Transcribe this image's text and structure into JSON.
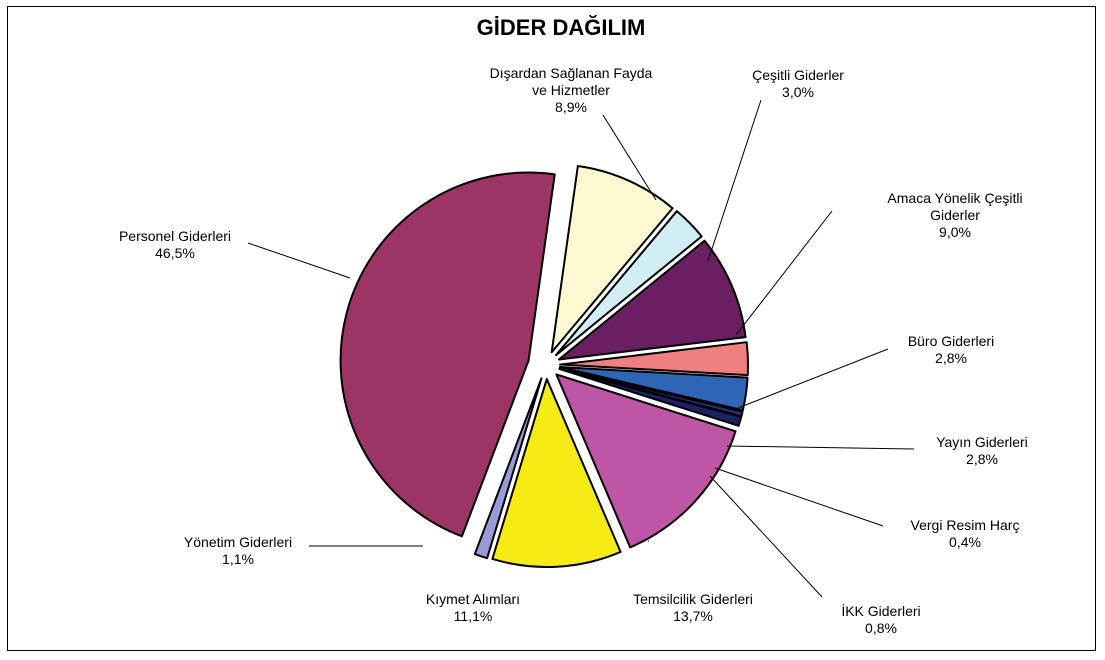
{
  "chart_data": {
    "type": "pie",
    "title": "GİDER DAĞILIM",
    "slices": [
      {
        "label": [
          "Dışardan Sağlanan Fayda",
          "ve Hizmetler"
        ],
        "value_text": "8,9%",
        "value": 8.9,
        "color": "#FBF8D2"
      },
      {
        "label": [
          "Çeşitli Giderler"
        ],
        "value_text": "3,0%",
        "value": 3.0,
        "color": "#D2EEF5"
      },
      {
        "label": [
          "Amaca Yönelik Çeşitli",
          "Giderler"
        ],
        "value_text": "9,0%",
        "value": 9.0,
        "color": "#6A1F62"
      },
      {
        "label": [
          "Büro Giderleri"
        ],
        "value_text": "2,8%",
        "value": 2.8,
        "color": "#F08080"
      },
      {
        "label": [
          "Yayın Giderleri"
        ],
        "value_text": "2,8%",
        "value": 2.8,
        "color": "#2E66B5"
      },
      {
        "label": [
          "Vergi Resim Harç"
        ],
        "value_text": "0,4%",
        "value": 0.4,
        "color": "#2C2C7A"
      },
      {
        "label": [
          "İKK Giderleri"
        ],
        "value_text": "0,8%",
        "value": 0.8,
        "color": "#1F1F66"
      },
      {
        "label": [
          "Temsilcilik Giderleri"
        ],
        "value_text": "13,7%",
        "value": 13.7,
        "color": "#BE55A5"
      },
      {
        "label": [
          "Kıymet Alımları"
        ],
        "value_text": "11,1%",
        "value": 11.1,
        "color": "#F5EB14"
      },
      {
        "label": [
          "Yönetim Giderleri"
        ],
        "value_text": "1,1%",
        "value": 1.1,
        "color": "#9A9AD8"
      },
      {
        "label": [
          "Personel Giderleri"
        ],
        "value_text": "46,5%",
        "value": 46.5,
        "color": "#9C3565"
      }
    ]
  }
}
